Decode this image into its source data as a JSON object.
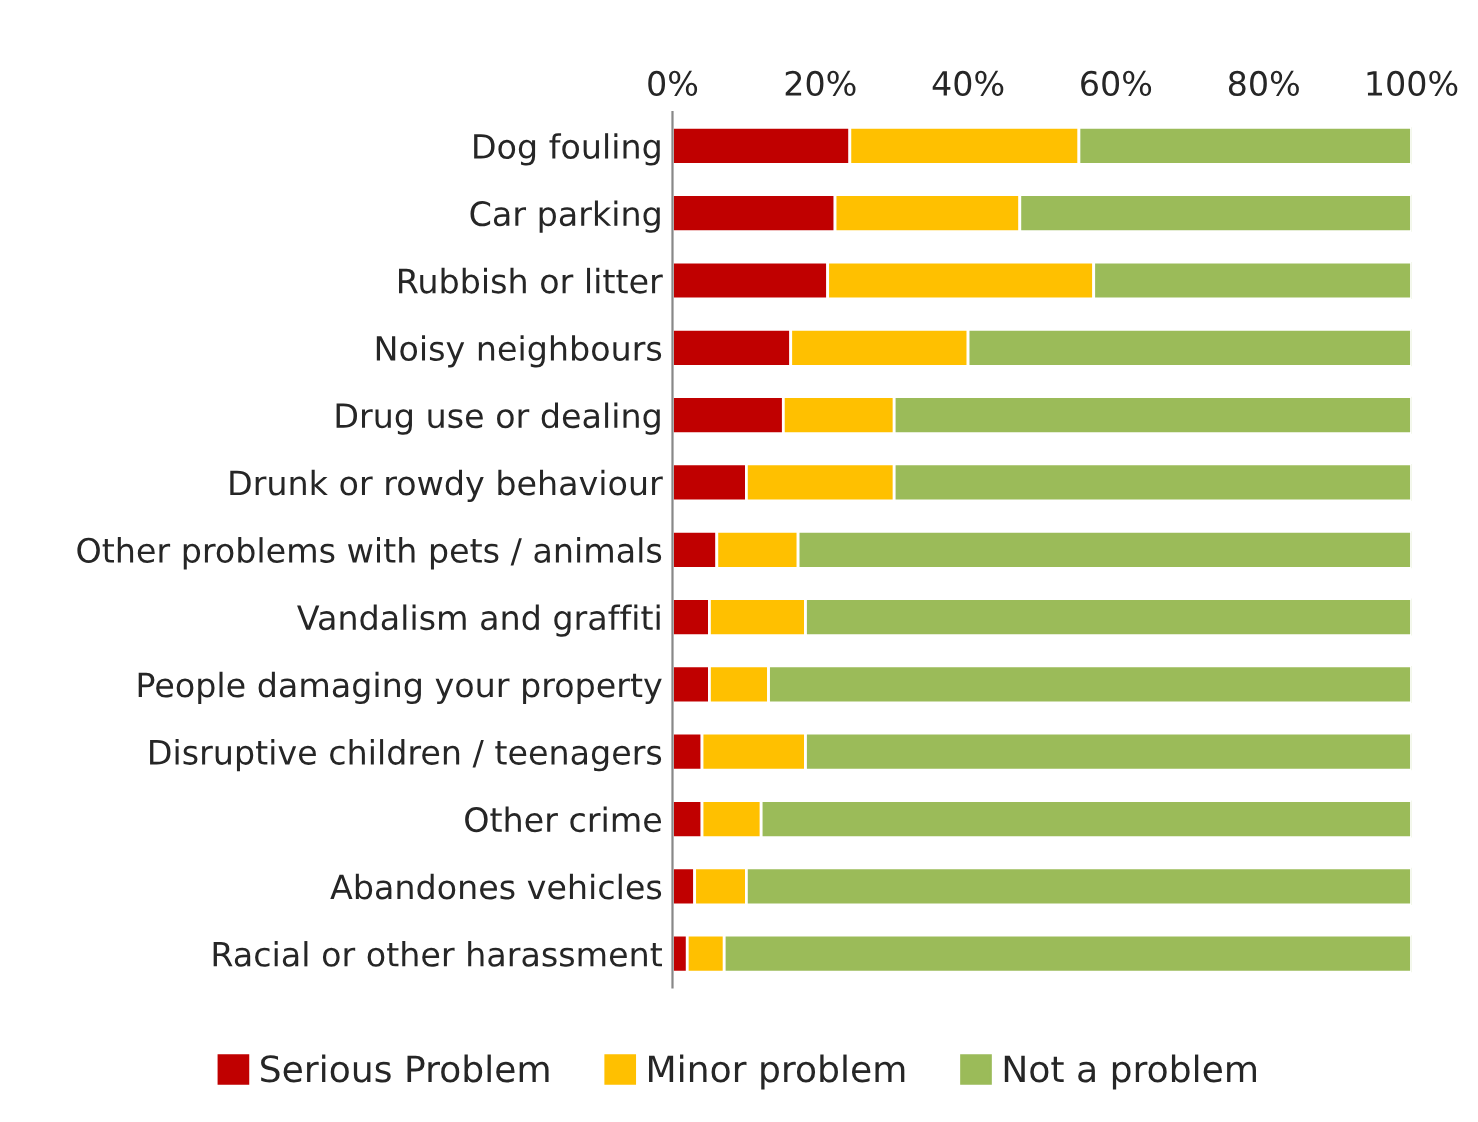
{
  "chart_data": {
    "type": "bar",
    "orientation": "horizontal",
    "stacked": true,
    "categories": [
      "Dog fouling",
      "Car parking",
      "Rubbish or litter",
      "Noisy neighbours",
      "Drug use or dealing",
      "Drunk or rowdy behaviour",
      "Other problems with pets / animals",
      "Vandalism and graffiti",
      "People damaging your property",
      "Disruptive children / teenagers",
      "Other crime",
      "Abandones vehicles",
      "Racial or other harassment"
    ],
    "series": [
      {
        "name": "Serious Problem",
        "color": "#c00000",
        "values": [
          24,
          22,
          21,
          16,
          15,
          10,
          6,
          5,
          5,
          4,
          4,
          3,
          2
        ]
      },
      {
        "name": "Minor problem",
        "color": "#ffc000",
        "values": [
          31,
          25,
          36,
          24,
          15,
          20,
          11,
          13,
          8,
          14,
          8,
          7,
          5
        ]
      },
      {
        "name": "Not a problem",
        "color": "#9bbb59",
        "values": [
          45,
          53,
          43,
          60,
          70,
          70,
          83,
          82,
          87,
          82,
          88,
          90,
          93
        ]
      }
    ],
    "xlim": [
      0,
      100
    ],
    "xticks": [
      {
        "value": 0,
        "label": "0%"
      },
      {
        "value": 20,
        "label": "20%"
      },
      {
        "value": 40,
        "label": "40%"
      },
      {
        "value": 60,
        "label": "60%"
      },
      {
        "value": 80,
        "label": "80%"
      },
      {
        "value": 100,
        "label": "100%"
      }
    ],
    "grid": false,
    "legend": "bottom"
  }
}
